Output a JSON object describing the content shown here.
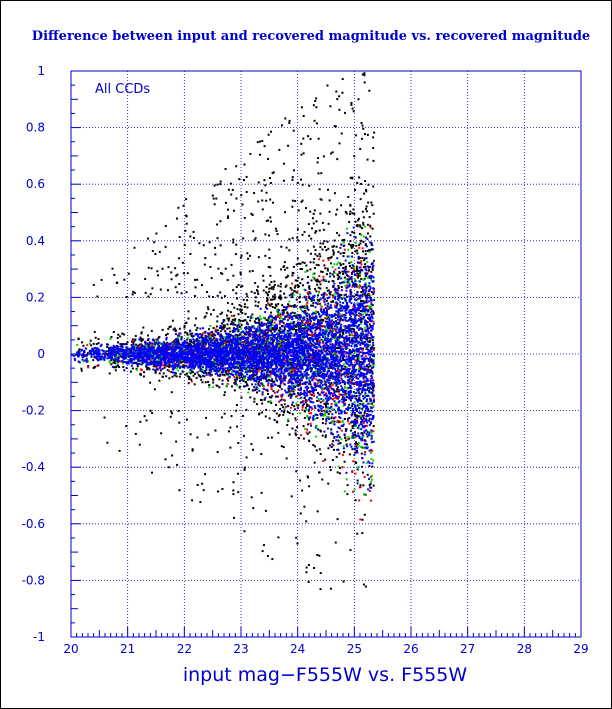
{
  "chart_data": {
    "type": "scatter",
    "title": "Difference between input and recovered magnitude vs. recovered magnitude",
    "xlabel": "input mag−F555W vs. F555W",
    "ylabel": "",
    "annotation": "All CCDs",
    "xlim": [
      20,
      29
    ],
    "ylim": [
      -1,
      1
    ],
    "x_ticks": [
      "20",
      "21",
      "22",
      "23",
      "24",
      "25",
      "26",
      "27",
      "28",
      "29"
    ],
    "y_ticks": [
      "1",
      "0.8",
      "0.6",
      "0.4",
      "0.2",
      "0",
      "-0.2",
      "-0.4",
      "-0.6",
      "-0.8",
      "-1"
    ],
    "grid": true,
    "series": [
      {
        "color": "#000000",
        "envelope": {
          "x": [
            20.0,
            21.0,
            22.0,
            23.0,
            24.0,
            24.5,
            25.0,
            25.3
          ],
          "spread": [
            0.05,
            0.06,
            0.08,
            0.12,
            0.2,
            0.28,
            0.38,
            0.45
          ]
        },
        "outliers_top_range": [
          0.2,
          1.0
        ],
        "outliers_bottom_range": [
          -0.9,
          -0.2
        ]
      },
      {
        "color": "#ff0000",
        "envelope": {
          "x": [
            20.0,
            21.0,
            22.0,
            23.0,
            24.0,
            24.5,
            25.0,
            25.3
          ],
          "spread": [
            0.03,
            0.04,
            0.06,
            0.1,
            0.18,
            0.26,
            0.38,
            0.48
          ]
        }
      },
      {
        "color": "#00dd00",
        "envelope": {
          "x": [
            20.0,
            21.0,
            22.0,
            23.0,
            24.0,
            24.5,
            25.0,
            25.3
          ],
          "spread": [
            0.03,
            0.04,
            0.06,
            0.1,
            0.18,
            0.27,
            0.4,
            0.5
          ]
        }
      },
      {
        "color": "#0000ff",
        "envelope": {
          "x": [
            20.0,
            21.0,
            22.0,
            23.0,
            24.0,
            24.5,
            25.0,
            25.3
          ],
          "spread": [
            0.02,
            0.03,
            0.05,
            0.08,
            0.14,
            0.2,
            0.3,
            0.35
          ]
        }
      }
    ],
    "colors": {
      "axis": "#0000cc",
      "grid": "#0000cc",
      "background": "#ffffff"
    }
  }
}
